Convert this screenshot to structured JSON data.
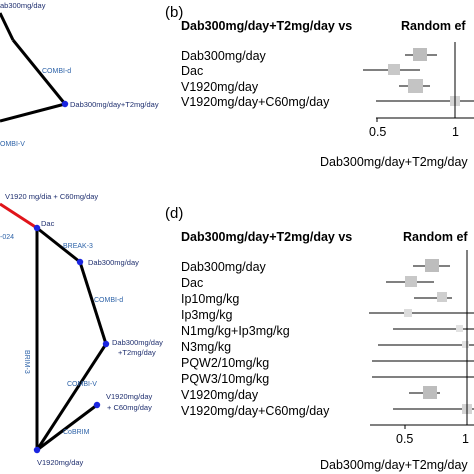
{
  "top": {
    "network": {
      "nodes": {
        "top_label": "ab300mg/day",
        "combo": "Dab300mg/day+T2mg/day"
      },
      "edges": {
        "combi_d": "COMBI-d",
        "combi_v": "OMBI-V"
      }
    },
    "forest": {
      "panel_label": "(b)",
      "heading": "Dab300mg/day+T2mg/day vs",
      "col_header": "Random ef",
      "rows": [
        "Dab300mg/day",
        "Dac",
        "V1920mg/day",
        "V1920mg/day+C60mg/day"
      ],
      "ticks": [
        "0.5",
        "1"
      ],
      "footer": "Dab300mg/day+T2mg/day"
    }
  },
  "bottom": {
    "network": {
      "nodes": {
        "top_label": "V1920 mg/dia + C60mg/day",
        "dac": "Dac",
        "dab": "Dab300mg/day",
        "combo_line1": "Dab300mg/day",
        "combo_line2": "+T2mg/day",
        "vc_line1": "V1920mg/day",
        "vc_line2": "+ C60mg/day",
        "v": "V1920mg/day"
      },
      "edges": {
        "o24": "-024",
        "break3": "BREAK-3",
        "brim3": "BRIM-3",
        "combi_d": "COMBI-d",
        "combi_v": "COMBI-V",
        "cobrim": "CoBRIM"
      }
    },
    "forest": {
      "panel_label": "(d)",
      "heading": "Dab300mg/day+T2mg/day vs",
      "col_header": "Random ef",
      "rows": [
        "Dab300mg/day",
        "Dac",
        "Ip10mg/kg",
        "Ip3mg/kg",
        "N1mg/kg+Ip3mg/kg",
        "N3mg/kg",
        "PQW2/10mg/kg",
        "PQW3/10mg/kg",
        "V1920mg/day",
        "V1920mg/day+C60mg/day"
      ],
      "ticks": [
        "0.5",
        "1"
      ],
      "footer": "Dab300mg/day+T2mg/day"
    }
  }
}
